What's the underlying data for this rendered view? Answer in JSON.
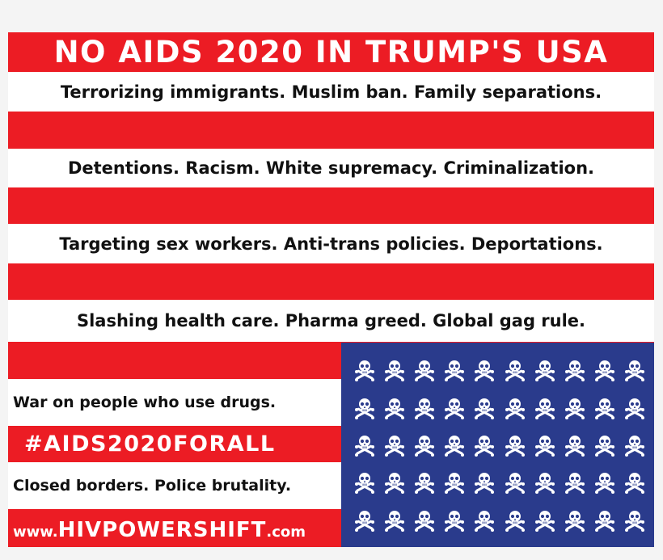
{
  "title": "NO AIDS 2020 IN TRUMP'S USA",
  "lines": [
    "Terrorizing immigrants. Muslim ban. Family separations.",
    "Detentions. Racism. White supremacy. Criminalization.",
    "Targeting sex workers. Anti-trans policies. Deportations.",
    "Slashing health care. Pharma greed. Global gag rule."
  ],
  "short_lines": [
    "War on people who use drugs.",
    "Closed borders. Police brutality."
  ],
  "hashtag": "#AIDS2020FORALL",
  "website": {
    "prefix": "www.",
    "main": "HIVPOWERSHIFT",
    "suffix": ".com"
  },
  "canton": {
    "icon": "skull-crossbones-icon",
    "rows": 5,
    "columns": 10
  },
  "colors": {
    "red": "#ec1c24",
    "white": "#ffffff",
    "blue": "#2a3b8c",
    "text": "#111111"
  }
}
